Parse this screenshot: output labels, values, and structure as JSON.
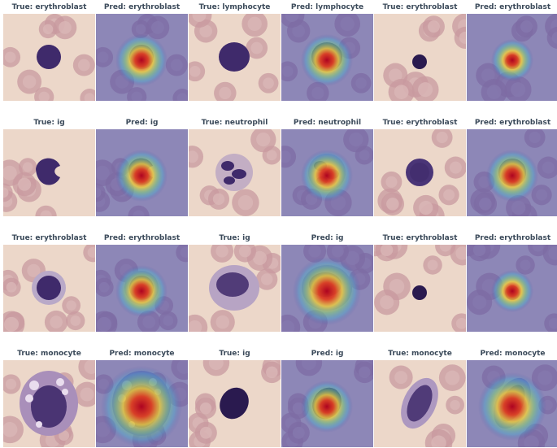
{
  "panels": [
    {
      "title": "True: erythroblast",
      "kind": "true",
      "cell": "erythroblast",
      "nucleus": "round-small"
    },
    {
      "title": "Pred: erythroblast",
      "kind": "pred",
      "cell": "erythroblast",
      "nucleus": "round-small"
    },
    {
      "title": "True: lymphocyte",
      "kind": "true",
      "cell": "lymphocyte",
      "nucleus": "round-large"
    },
    {
      "title": "Pred: lymphocyte",
      "kind": "pred",
      "cell": "lymphocyte",
      "nucleus": "round-large"
    },
    {
      "title": "True: erythroblast",
      "kind": "true",
      "cell": "erythroblast",
      "nucleus": "tiny-dark"
    },
    {
      "title": "Pred: erythroblast",
      "kind": "pred",
      "cell": "erythroblast",
      "nucleus": "tiny-dark"
    },
    {
      "title": "True: ig",
      "kind": "true",
      "cell": "ig",
      "nucleus": "kidney"
    },
    {
      "title": "Pred: ig",
      "kind": "pred",
      "cell": "ig",
      "nucleus": "kidney"
    },
    {
      "title": "True: neutrophil",
      "kind": "true",
      "cell": "neutrophil",
      "nucleus": "lobed"
    },
    {
      "title": "Pred: neutrophil",
      "kind": "pred",
      "cell": "neutrophil",
      "nucleus": "lobed"
    },
    {
      "title": "True: erythroblast",
      "kind": "true",
      "cell": "erythroblast",
      "nucleus": "round-mid"
    },
    {
      "title": "Pred: erythroblast",
      "kind": "pred",
      "cell": "erythroblast",
      "nucleus": "round-mid"
    },
    {
      "title": "True: erythroblast",
      "kind": "true",
      "cell": "erythroblast",
      "nucleus": "round-halo"
    },
    {
      "title": "Pred: erythroblast",
      "kind": "pred",
      "cell": "erythroblast",
      "nucleus": "round-halo"
    },
    {
      "title": "True: ig",
      "kind": "true",
      "cell": "ig",
      "nucleus": "oval-large"
    },
    {
      "title": "Pred: ig",
      "kind": "pred",
      "cell": "ig",
      "nucleus": "oval-large"
    },
    {
      "title": "True: erythroblast",
      "kind": "true",
      "cell": "erythroblast",
      "nucleus": "tiny-dark"
    },
    {
      "title": "Pred: erythroblast",
      "kind": "pred",
      "cell": "erythroblast",
      "nucleus": "tiny-dark"
    },
    {
      "title": "True: monocyte",
      "kind": "true",
      "cell": "monocyte",
      "nucleus": "large-vacuolated"
    },
    {
      "title": "Pred: monocyte",
      "kind": "pred",
      "cell": "monocyte",
      "nucleus": "large-vacuolated"
    },
    {
      "title": "True: ig",
      "kind": "true",
      "cell": "ig",
      "nucleus": "oval-dark"
    },
    {
      "title": "Pred: ig",
      "kind": "pred",
      "cell": "ig",
      "nucleus": "oval-dark"
    },
    {
      "title": "True: monocyte",
      "kind": "true",
      "cell": "monocyte",
      "nucleus": "elongated"
    },
    {
      "title": "Pred: monocyte",
      "kind": "pred",
      "cell": "monocyte",
      "nucleus": "elongated"
    }
  ],
  "colors": {
    "background_smear": "#ecd7c9",
    "rbc": "#c89a9f",
    "rbc_center": "#d9b6b6",
    "nucleus": "#3f2a6b",
    "nucleus_dark": "#2a1a4f",
    "heatmap_base": "#3f46a8",
    "heatmap_hot": "#e0281e",
    "title_text": "#3b4a5a"
  }
}
